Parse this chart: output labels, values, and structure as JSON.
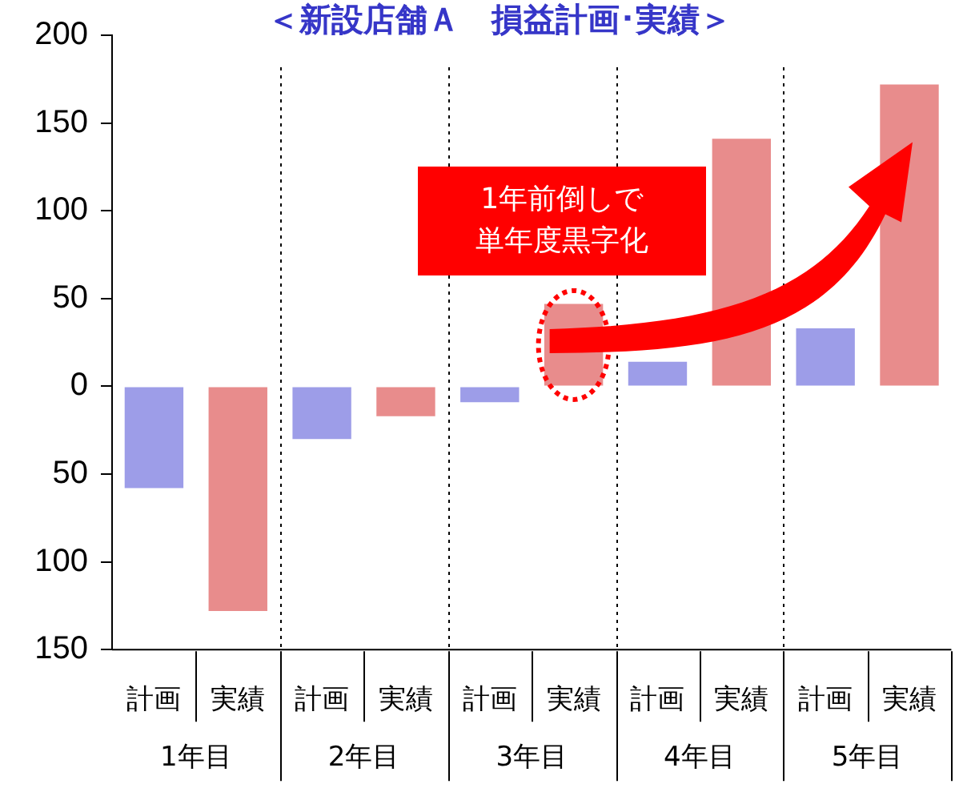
{
  "chart_data": {
    "type": "bar",
    "title": "＜新設店舗Ａ　損益計画･実績＞",
    "categories": [
      "計画",
      "実績",
      "計画",
      "実績",
      "計画",
      "実績",
      "計画",
      "実績",
      "計画",
      "実績"
    ],
    "series": [
      {
        "color": "#9d9de8",
        "values": [
          -58,
          null,
          -30,
          null,
          -9,
          null,
          14,
          null,
          33,
          null
        ]
      },
      {
        "color": "#e88c8c",
        "values": [
          null,
          -128,
          null,
          -17,
          null,
          47,
          null,
          141,
          null,
          172
        ]
      }
    ],
    "ylim": [
      -150,
      200
    ],
    "yticks": [
      {
        "value": -150,
        "label": "150"
      },
      {
        "value": -100,
        "label": "100"
      },
      {
        "value": -50,
        "label": "50"
      },
      0,
      50,
      100,
      150,
      200
    ],
    "grid": false,
    "legend": false,
    "annotations": [
      "1年目",
      "2年目",
      "3年目",
      "4年目",
      "5年目",
      "1年前倒しで単年度黒字化"
    ]
  }
}
